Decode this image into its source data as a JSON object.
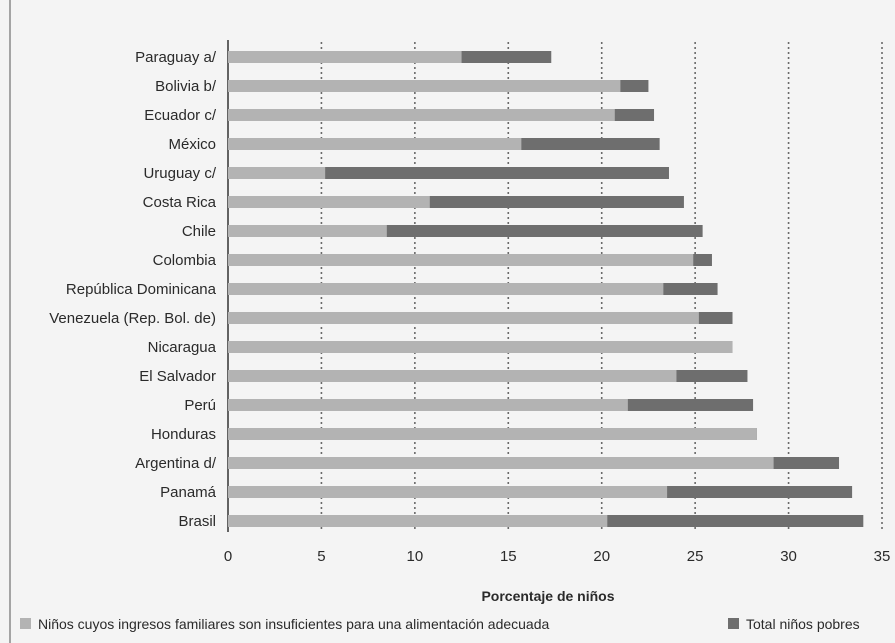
{
  "chart_data": {
    "type": "bar",
    "orientation": "horizontal",
    "stacking": "overlay",
    "categories": [
      "Paraguay a/",
      "Bolivia b/",
      "Ecuador c/",
      "México",
      "Uruguay c/",
      "Costa Rica",
      "Chile",
      "Colombia",
      "República Dominicana",
      "Venezuela (Rep. Bol. de)",
      "Nicaragua",
      "El Salvador",
      "Perú",
      "Honduras",
      "Argentina d/",
      "Panamá",
      "Brasil"
    ],
    "series": [
      {
        "name": "Niños cuyos ingresos familiares son insuficientes para una alimentación adecuada",
        "color": "#b3b3b3",
        "values": [
          12.5,
          21.0,
          20.7,
          15.7,
          5.2,
          10.8,
          8.5,
          24.9,
          23.3,
          25.2,
          27.0,
          24.0,
          21.4,
          28.3,
          29.2,
          23.5,
          20.3
        ]
      },
      {
        "name": "Total niños pobres",
        "color": "#6e6e6e",
        "values": [
          17.3,
          22.5,
          22.8,
          23.1,
          23.6,
          24.4,
          25.4,
          25.9,
          26.2,
          27.0,
          27.0,
          27.8,
          28.1,
          28.3,
          32.7,
          33.4,
          34.0
        ]
      }
    ],
    "xlabel": "Porcentaje de niños",
    "xlim": [
      0,
      35
    ],
    "xticks": [
      0,
      5,
      10,
      15,
      20,
      25,
      30,
      35
    ],
    "grid": "vertical-dotted",
    "legend_position": "bottom"
  }
}
